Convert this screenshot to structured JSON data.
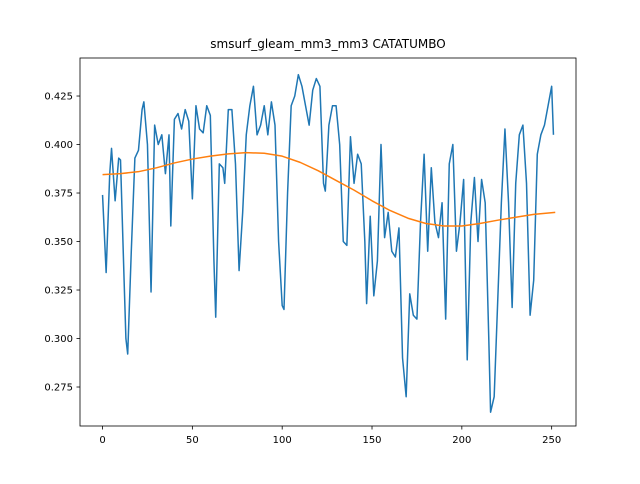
{
  "chart_data": {
    "type": "line",
    "title": "smsurf_gleam_mm3_mm3 CATATUMBO",
    "xlim": [
      -12.55,
      263.55
    ],
    "xticks": [
      0,
      50,
      100,
      150,
      200,
      250
    ],
    "ylim": [
      0.2549,
      0.4446
    ],
    "yticks": [
      0.275,
      {
        "value": 0.3,
        "label": "0.300"
      },
      0.325,
      {
        "value": 0.35,
        "label": "0.350"
      },
      0.375,
      {
        "value": 0.4,
        "label": "0.400"
      },
      0.425
    ],
    "grid": false,
    "series": [
      {
        "color": "#1f77b4",
        "x": [
          0,
          2,
          4,
          5,
          7,
          9,
          10,
          12,
          13,
          14,
          16,
          18,
          20,
          22,
          23,
          25,
          27,
          29,
          31,
          33,
          35,
          37,
          38,
          40,
          42,
          44,
          46,
          48,
          50,
          52,
          54,
          56,
          58,
          60,
          62,
          63,
          65,
          67,
          68,
          70,
          72,
          74,
          76,
          78,
          80,
          82,
          84,
          86,
          88,
          90,
          92,
          94,
          96,
          98,
          100,
          101,
          103,
          105,
          107,
          109,
          111,
          113,
          115,
          117,
          119,
          121,
          123,
          124,
          126,
          128,
          130,
          132,
          134,
          136,
          138,
          140,
          142,
          144,
          146,
          147,
          149,
          151,
          153,
          155,
          157,
          159,
          161,
          163,
          165,
          167,
          169,
          171,
          173,
          175,
          177,
          179,
          181,
          183,
          185,
          187,
          189,
          191,
          193,
          195,
          197,
          199,
          201,
          203,
          205,
          207,
          209,
          211,
          213,
          215,
          216,
          218,
          220,
          222,
          224,
          226,
          228,
          230,
          232,
          234,
          236,
          238,
          240,
          242,
          244,
          246,
          248,
          250,
          251
        ],
        "values": [
          0.374,
          0.334,
          0.385,
          0.398,
          0.371,
          0.393,
          0.392,
          0.33,
          0.3,
          0.292,
          0.345,
          0.393,
          0.397,
          0.418,
          0.422,
          0.4,
          0.324,
          0.41,
          0.4,
          0.405,
          0.385,
          0.405,
          0.358,
          0.413,
          0.416,
          0.408,
          0.418,
          0.412,
          0.372,
          0.42,
          0.408,
          0.406,
          0.42,
          0.415,
          0.34,
          0.311,
          0.39,
          0.388,
          0.38,
          0.418,
          0.418,
          0.39,
          0.335,
          0.365,
          0.405,
          0.42,
          0.43,
          0.405,
          0.41,
          0.42,
          0.405,
          0.422,
          0.41,
          0.35,
          0.317,
          0.315,
          0.375,
          0.42,
          0.425,
          0.436,
          0.43,
          0.42,
          0.41,
          0.428,
          0.434,
          0.43,
          0.38,
          0.376,
          0.41,
          0.42,
          0.42,
          0.4,
          0.35,
          0.348,
          0.404,
          0.38,
          0.395,
          0.39,
          0.35,
          0.318,
          0.363,
          0.322,
          0.34,
          0.4,
          0.352,
          0.365,
          0.345,
          0.342,
          0.357,
          0.29,
          0.27,
          0.323,
          0.312,
          0.31,
          0.36,
          0.395,
          0.345,
          0.388,
          0.36,
          0.352,
          0.37,
          0.31,
          0.39,
          0.4,
          0.345,
          0.36,
          0.382,
          0.289,
          0.36,
          0.383,
          0.35,
          0.382,
          0.37,
          0.3,
          0.262,
          0.27,
          0.32,
          0.37,
          0.408,
          0.37,
          0.316,
          0.38,
          0.405,
          0.41,
          0.38,
          0.312,
          0.33,
          0.395,
          0.405,
          0.41,
          0.42,
          0.43,
          0.405
        ]
      },
      {
        "color": "#ff7f0e",
        "x": [
          0,
          10,
          20,
          30,
          40,
          50,
          60,
          70,
          80,
          90,
          100,
          110,
          120,
          130,
          140,
          150,
          160,
          170,
          180,
          190,
          200,
          210,
          220,
          230,
          240,
          252
        ],
        "values": [
          0.3845,
          0.385,
          0.386,
          0.388,
          0.3905,
          0.3925,
          0.394,
          0.3952,
          0.3958,
          0.3955,
          0.394,
          0.3908,
          0.3865,
          0.3815,
          0.3765,
          0.371,
          0.366,
          0.362,
          0.3593,
          0.358,
          0.358,
          0.3593,
          0.361,
          0.3625,
          0.364,
          0.365
        ]
      }
    ]
  }
}
